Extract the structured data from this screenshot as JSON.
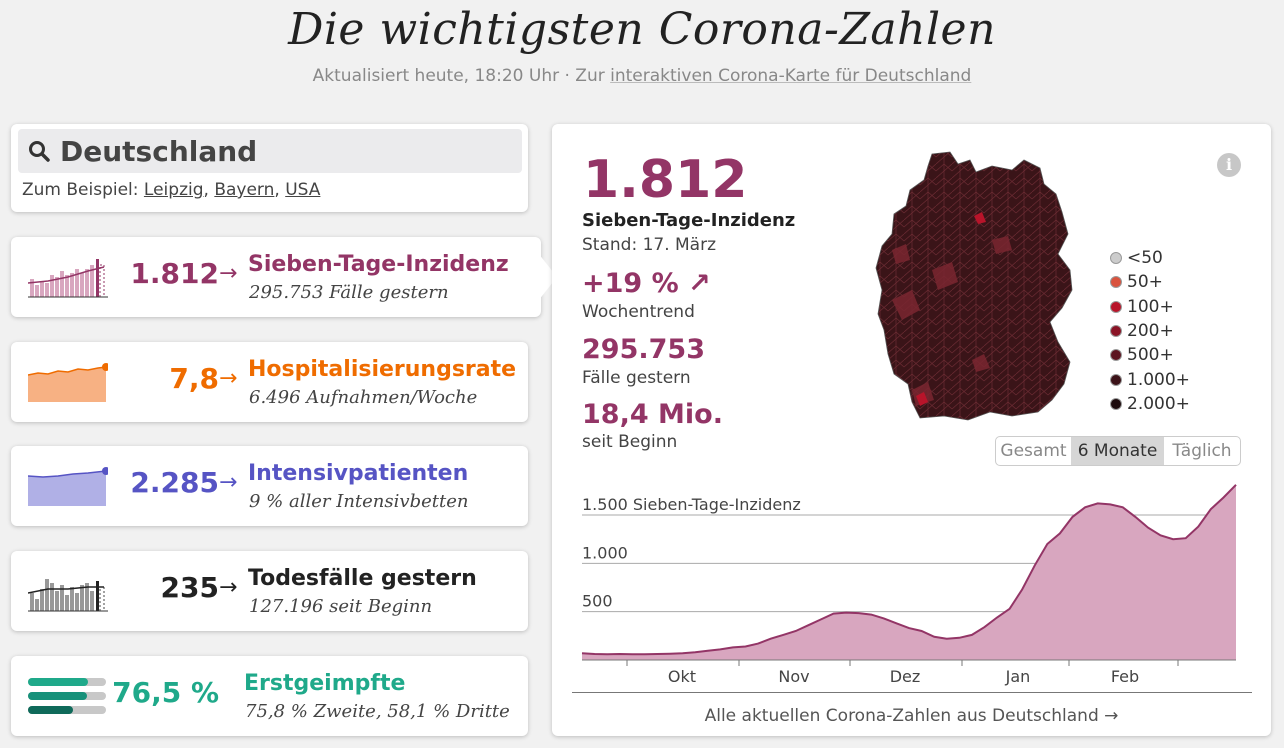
{
  "header": {
    "title": "Die wichtigsten Corona-Zahlen",
    "updated": "Aktualisiert heute, 18:20 Uhr · Zur ",
    "map_link": "interaktiven Corona-Karte für Deutschland"
  },
  "search": {
    "value": "Deutschland",
    "hint_prefix": "Zum Beispiel: ",
    "examples": [
      "Leipzig",
      "Bayern",
      "USA"
    ],
    "sep": ", "
  },
  "metrics": [
    {
      "value": "1.812",
      "arrow": "→",
      "label": "Sieben-Tage-Inzidenz",
      "sub": "295.753 Fälle gestern",
      "color": "#933566"
    },
    {
      "value": "7,8",
      "arrow": "→",
      "label": "Hospitalisierungsrate",
      "sub": "6.496 Aufnahmen/Woche",
      "color": "#ef6c00"
    },
    {
      "value": "2.285",
      "arrow": "→",
      "label": "Intensivpatienten",
      "sub": "9 % aller Intensivbetten",
      "color": "#5654c4"
    },
    {
      "value": "235",
      "arrow": "→",
      "label": "Todesfälle gestern",
      "sub": "127.196 seit Beginn",
      "color": "#222222"
    },
    {
      "value": "76,5 %",
      "arrow": "",
      "label": "Erstgeimpfte",
      "sub": "75,8 % Zweite, 58,1 % Dritte",
      "color": "#1fa98a"
    }
  ],
  "detail": {
    "value": "1.812",
    "label": "Sieben-Tage-Inzidenz",
    "date": "Stand: 17. März",
    "trend_value": "+19 % ↗",
    "trend_label": "Wochentrend",
    "cases_value": "295.753",
    "cases_label": "Fälle gestern",
    "total_value": "18,4 Mio.",
    "total_label": "seit Beginn",
    "info": "i",
    "legend": [
      {
        "label": "<50",
        "color": "#cccccc"
      },
      {
        "label": "50+",
        "color": "#d9533e"
      },
      {
        "label": "100+",
        "color": "#b8142a"
      },
      {
        "label": "200+",
        "color": "#8a1426"
      },
      {
        "label": "500+",
        "color": "#5c1420"
      },
      {
        "label": "1.000+",
        "color": "#3c1218"
      },
      {
        "label": "2.000+",
        "color": "#1c0a0c"
      }
    ],
    "toggle": [
      "Gesamt",
      "6 Monate",
      "Täglich"
    ],
    "toggle_selected": 1,
    "footer": "Alle aktuellen Corona-Zahlen aus Deutschland →"
  },
  "chart_data": {
    "type": "area",
    "title": "",
    "ylabel": "Sieben-Tage-Inzidenz",
    "ylim": [
      0,
      1800
    ],
    "yticks": [
      500,
      1000,
      1500
    ],
    "ytick_labels": [
      "500",
      "1.000",
      "1.500 Sieben-Tage-Inzidenz"
    ],
    "xticks": [
      "Okt",
      "Nov",
      "Dez",
      "Jan",
      "Feb"
    ],
    "color": "#933566",
    "series": [
      {
        "values": [
          70,
          62,
          60,
          62,
          60,
          60,
          62,
          65,
          70,
          80,
          95,
          110,
          130,
          140,
          170,
          220,
          260,
          300,
          360,
          420,
          480,
          490,
          485,
          470,
          430,
          380,
          330,
          300,
          240,
          220,
          230,
          260,
          340,
          440,
          530,
          730,
          980,
          1200,
          1310,
          1480,
          1580,
          1620,
          1610,
          1580,
          1480,
          1370,
          1290,
          1250,
          1260,
          1380,
          1560,
          1680,
          1812
        ]
      }
    ]
  }
}
